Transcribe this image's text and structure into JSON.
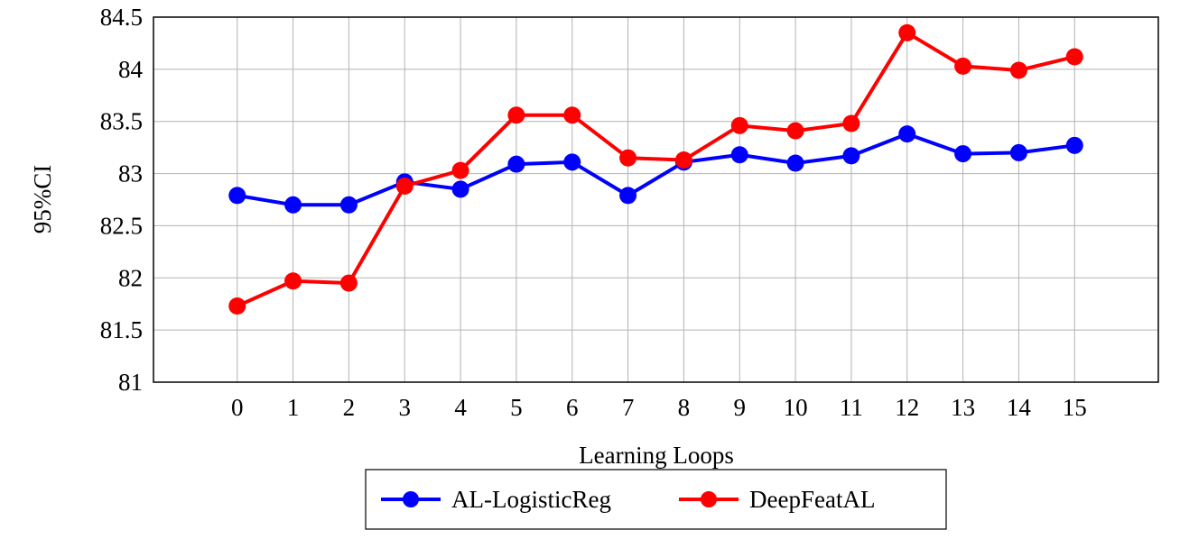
{
  "chart_data": {
    "type": "line",
    "title": "",
    "xlabel": "Learning Loops",
    "ylabel": "95%CI",
    "xlim": [
      -1.5,
      16.5
    ],
    "ylim": [
      81,
      84.5
    ],
    "grid": true,
    "legend_position": "bottom-center",
    "x": [
      0,
      1,
      2,
      3,
      4,
      5,
      6,
      7,
      8,
      9,
      10,
      11,
      12,
      13,
      14,
      15
    ],
    "x_ticks": [
      "0",
      "1",
      "2",
      "3",
      "4",
      "5",
      "6",
      "7",
      "8",
      "9",
      "10",
      "11",
      "12",
      "13",
      "14",
      "15"
    ],
    "y_ticks": [
      "81",
      "81.5",
      "82",
      "82.5",
      "83",
      "83.5",
      "84",
      "84.5"
    ],
    "y_tick_values": [
      81,
      81.5,
      82,
      82.5,
      83,
      83.5,
      84,
      84.5
    ],
    "series": [
      {
        "name": "AL-LogisticReg",
        "color": "#0000ff",
        "values": [
          82.79,
          82.7,
          82.7,
          82.92,
          82.85,
          83.09,
          83.11,
          82.79,
          83.11,
          83.18,
          83.1,
          83.17,
          83.38,
          83.19,
          83.2,
          83.27
        ]
      },
      {
        "name": "DeepFeatAL",
        "color": "#ff0000",
        "values": [
          81.73,
          81.97,
          81.95,
          82.88,
          83.03,
          83.56,
          83.56,
          83.15,
          83.13,
          83.46,
          83.41,
          83.48,
          84.35,
          84.03,
          83.99,
          84.12
        ]
      }
    ]
  }
}
